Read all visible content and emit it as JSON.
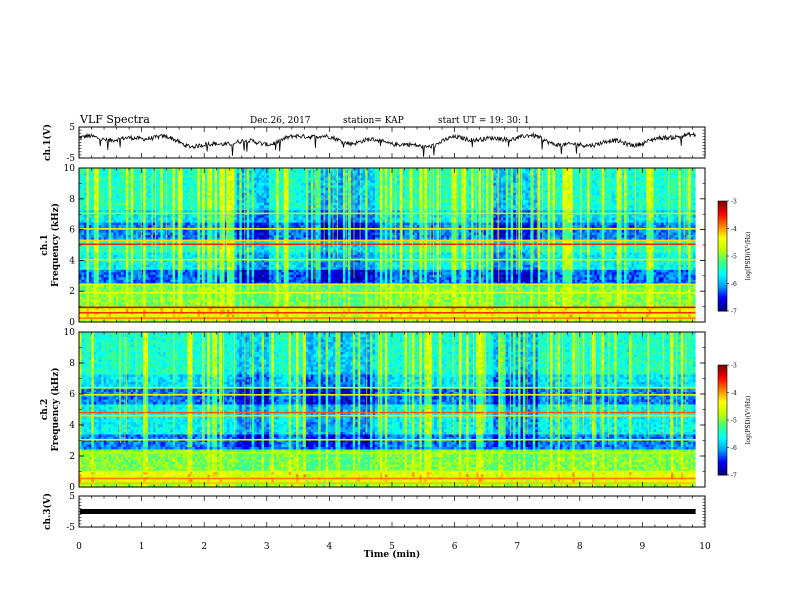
{
  "header": {
    "title": "VLF Spectra",
    "date": "Dec.26, 2017",
    "station": "station= KAP",
    "start": "start UT = 19: 30: 1"
  },
  "chart_data": {
    "type": "heatmap",
    "x_axis": {
      "label": "Time (min)",
      "range": [
        0,
        10
      ],
      "ticks": [
        "0",
        "1",
        "2",
        "3",
        "4",
        "5",
        "6",
        "7",
        "8",
        "9",
        "10"
      ]
    },
    "panels": [
      {
        "id": "ch1-waveform",
        "type": "line",
        "ylabel": "ch.1(V)",
        "ylim": [
          -5,
          5
        ],
        "yticks": [
          "5",
          "-5"
        ],
        "trace_end_min": 9.85,
        "description_values": "noisy waveform around -1 to 2 V"
      },
      {
        "id": "ch1-spectrogram",
        "type": "heatmap",
        "ylabel": "ch.1 Frequency (kHz)",
        "ylim": [
          0,
          10
        ],
        "yticks": [
          "0",
          "2",
          "4",
          "6",
          "8",
          "10"
        ],
        "data_end_min": 9.85,
        "colorbar": {
          "label": "log(PSD)(V²/Hz)",
          "range": [
            -7,
            -3
          ],
          "ticks": [
            "-3",
            "-4",
            "-5",
            "-6",
            "-7"
          ]
        }
      },
      {
        "id": "ch2-spectrogram",
        "type": "heatmap",
        "ylabel": "ch.2 Frequency (kHz)",
        "ylim": [
          0,
          10
        ],
        "yticks": [
          "0",
          "2",
          "4",
          "6",
          "8",
          "10"
        ],
        "data_end_min": 9.85,
        "colorbar": {
          "label": "log(PSD)(V²/Hz)",
          "range": [
            -7,
            -3
          ],
          "ticks": [
            "-3",
            "-4",
            "-5",
            "-6",
            "-7"
          ]
        }
      },
      {
        "id": "ch3-waveform",
        "type": "line",
        "ylabel": "ch.3(V)",
        "ylim": [
          -5,
          5
        ],
        "yticks": [
          "5",
          "-5"
        ],
        "constant_value": 0,
        "trace_end_min": 9.85
      }
    ],
    "colors": {
      "colormap": [
        "#000080",
        "#0000ff",
        "#00a0ff",
        "#00ffff",
        "#40ff80",
        "#c0ff00",
        "#ffff00",
        "#ff8000",
        "#ff0000",
        "#800000"
      ]
    }
  }
}
